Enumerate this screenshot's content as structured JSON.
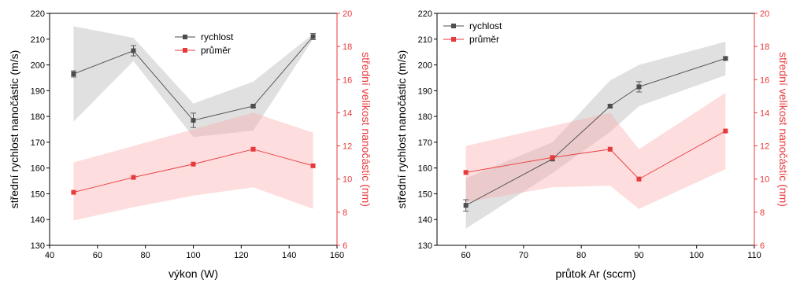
{
  "colors": {
    "speed": "#4d4d4d",
    "size": "#e8393b",
    "speed_band": "#b4b4b4",
    "size_band": "#f9a6a6",
    "axis": "#000000",
    "right_axis": "#e8393b"
  },
  "chart_data": [
    {
      "type": "line",
      "xlabel": "výkon (W)",
      "ylabel": "střední rychlost nanočástic (m/s)",
      "y2label": "střední velikost nanočástic (nm)",
      "xlim": [
        40,
        160
      ],
      "xticks": [
        "40",
        "60",
        "80",
        "100",
        "120",
        "140",
        "160"
      ],
      "ylim": [
        130,
        220
      ],
      "yticks": [
        "130",
        "140",
        "150",
        "160",
        "170",
        "180",
        "190",
        "200",
        "210",
        "220"
      ],
      "y2lim": [
        6,
        20
      ],
      "y2ticks": [
        "6",
        "8",
        "10",
        "12",
        "14",
        "16",
        "18",
        "20"
      ],
      "legend": "top-center",
      "grid": false,
      "series": [
        {
          "name": "rychlost",
          "axis": "left",
          "x": [
            50,
            75,
            100,
            125,
            150
          ],
          "y": [
            196.5,
            205.5,
            178.5,
            184,
            211
          ],
          "err": [
            1.2,
            2.0,
            2.8,
            0.5,
            1.2
          ],
          "band_upper": [
            215,
            210.5,
            185,
            193.5,
            212
          ],
          "band_lower": [
            178,
            201.5,
            172,
            174.5,
            210
          ]
        },
        {
          "name": "průměr",
          "axis": "right",
          "x": [
            50,
            75,
            100,
            125,
            150
          ],
          "y": [
            9.2,
            10.1,
            10.9,
            11.8,
            10.8
          ],
          "band_upper": [
            11.0,
            12.0,
            13.0,
            14.0,
            12.8
          ],
          "band_lower": [
            7.5,
            8.3,
            9.0,
            9.5,
            8.2
          ]
        }
      ]
    },
    {
      "type": "line",
      "xlabel": "průtok Ar (sccm)",
      "ylabel": "střední rychlost nanočástic (m/s)",
      "y2label": "střední velikost nanočástic (nm)",
      "xlim": [
        55,
        110
      ],
      "xticks": [
        "60",
        "70",
        "80",
        "90",
        "100",
        "110"
      ],
      "ylim": [
        130,
        220
      ],
      "yticks": [
        "130",
        "140",
        "150",
        "160",
        "170",
        "180",
        "190",
        "200",
        "210",
        "220"
      ],
      "y2lim": [
        6,
        20
      ],
      "y2ticks": [
        "6",
        "8",
        "10",
        "12",
        "14",
        "16",
        "18",
        "20"
      ],
      "legend": "top-left",
      "grid": false,
      "series": [
        {
          "name": "rychlost",
          "axis": "left",
          "x": [
            60,
            75,
            85,
            90,
            105
          ],
          "y": [
            145.5,
            163.5,
            184,
            191.5,
            202.5
          ],
          "err": [
            2.2,
            0.5,
            0.5,
            2.0,
            0.5
          ],
          "band_upper": [
            156,
            170,
            194,
            200,
            209
          ],
          "band_lower": [
            136.5,
            158,
            174,
            184,
            196
          ]
        },
        {
          "name": "průměr",
          "axis": "right",
          "x": [
            60,
            75,
            85,
            90,
            105
          ],
          "y": [
            10.4,
            11.3,
            11.8,
            10.0,
            12.9
          ],
          "band_upper": [
            12.0,
            13.2,
            14.0,
            11.8,
            15.2
          ],
          "band_lower": [
            8.6,
            9.5,
            9.6,
            8.2,
            10.6
          ]
        }
      ]
    }
  ]
}
